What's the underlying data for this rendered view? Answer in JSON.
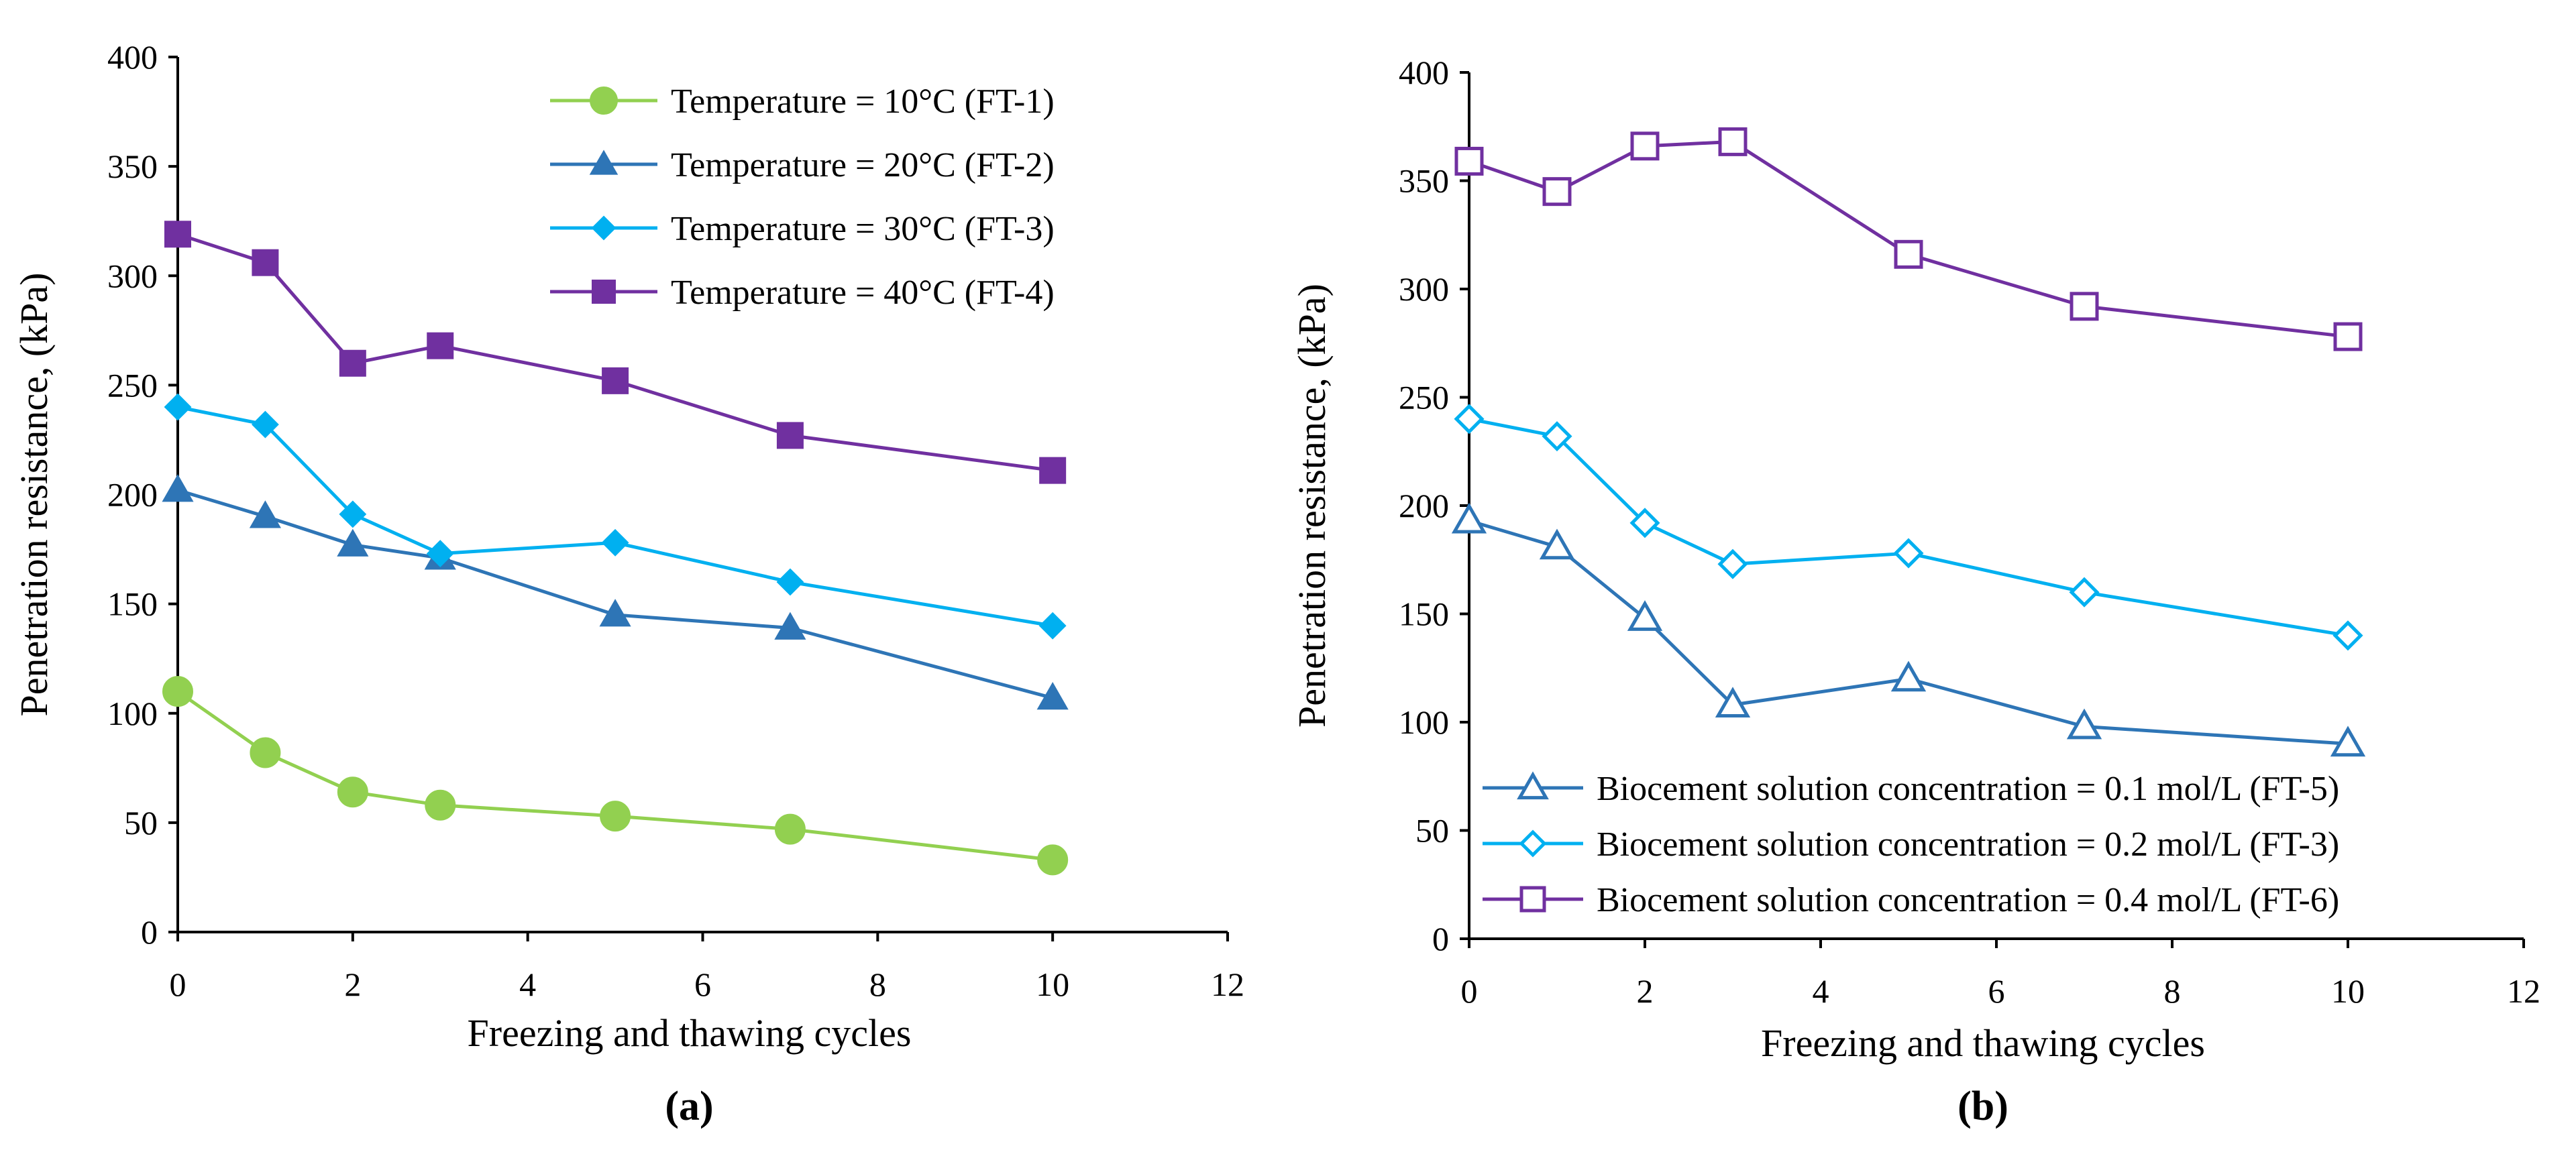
{
  "chart_data": [
    {
      "type": "line",
      "panel_label": "(a)",
      "xlabel": "Freezing and thawing cycles",
      "ylabel": "Penetration resistance, (kPa)",
      "xlim": [
        0,
        12
      ],
      "ylim": [
        0,
        400
      ],
      "xticks": [
        0,
        2,
        4,
        6,
        8,
        10,
        12
      ],
      "yticks": [
        0,
        50,
        100,
        150,
        200,
        250,
        300,
        350,
        400
      ],
      "grid": false,
      "legend_position": "top-right",
      "series": [
        {
          "name": "Temperature = 10°C (FT-1)",
          "color": "#92D050",
          "marker": "circle",
          "filled": true,
          "x": [
            0,
            1,
            2,
            3,
            5,
            7,
            10
          ],
          "y": [
            110,
            82,
            64,
            58,
            53,
            47,
            33
          ]
        },
        {
          "name": "Temperature = 20°C (FT-2)",
          "color": "#2E75B6",
          "marker": "triangle",
          "filled": true,
          "x": [
            0,
            1,
            2,
            3,
            5,
            7,
            10
          ],
          "y": [
            202,
            190,
            177,
            171,
            145,
            139,
            107
          ]
        },
        {
          "name": "Temperature = 30°C (FT-3)",
          "color": "#00B0F0",
          "marker": "diamond",
          "filled": true,
          "x": [
            0,
            1,
            2,
            3,
            5,
            7,
            10
          ],
          "y": [
            240,
            232,
            191,
            173,
            178,
            160,
            140
          ]
        },
        {
          "name": "Temperature = 40°C (FT-4)",
          "color": "#7030A0",
          "marker": "square",
          "filled": true,
          "x": [
            0,
            1,
            2,
            3,
            5,
            7,
            10
          ],
          "y": [
            319,
            306,
            260,
            268,
            252,
            227,
            211
          ]
        }
      ]
    },
    {
      "type": "line",
      "panel_label": "(b)",
      "xlabel": "Freezing and thawing cycles",
      "ylabel": "Penetration resistance, (kPa)",
      "xlim": [
        0,
        12
      ],
      "ylim": [
        0,
        400
      ],
      "xticks": [
        0,
        2,
        4,
        6,
        8,
        10,
        12
      ],
      "yticks": [
        0,
        50,
        100,
        150,
        200,
        250,
        300,
        350,
        400
      ],
      "grid": false,
      "legend_position": "bottom-left",
      "series": [
        {
          "name": "Biocement solution concentration = 0.1 mol/L (FT-5)",
          "color": "#2E75B6",
          "marker": "triangle",
          "filled": false,
          "x": [
            0,
            1,
            2,
            3,
            5,
            7,
            10
          ],
          "y": [
            193,
            181,
            148,
            108,
            120,
            98,
            90
          ]
        },
        {
          "name": "Biocement solution concentration = 0.2 mol/L (FT-3)",
          "color": "#00B0F0",
          "marker": "diamond",
          "filled": false,
          "x": [
            0,
            1,
            2,
            3,
            5,
            7,
            10
          ],
          "y": [
            240,
            232,
            192,
            173,
            178,
            160,
            140
          ]
        },
        {
          "name": "Biocement solution concentration = 0.4 mol/L (FT-6)",
          "color": "#7030A0",
          "marker": "square",
          "filled": false,
          "x": [
            0,
            1,
            2,
            3,
            5,
            7,
            10
          ],
          "y": [
            359,
            345,
            366,
            368,
            316,
            292,
            278
          ]
        }
      ]
    }
  ]
}
